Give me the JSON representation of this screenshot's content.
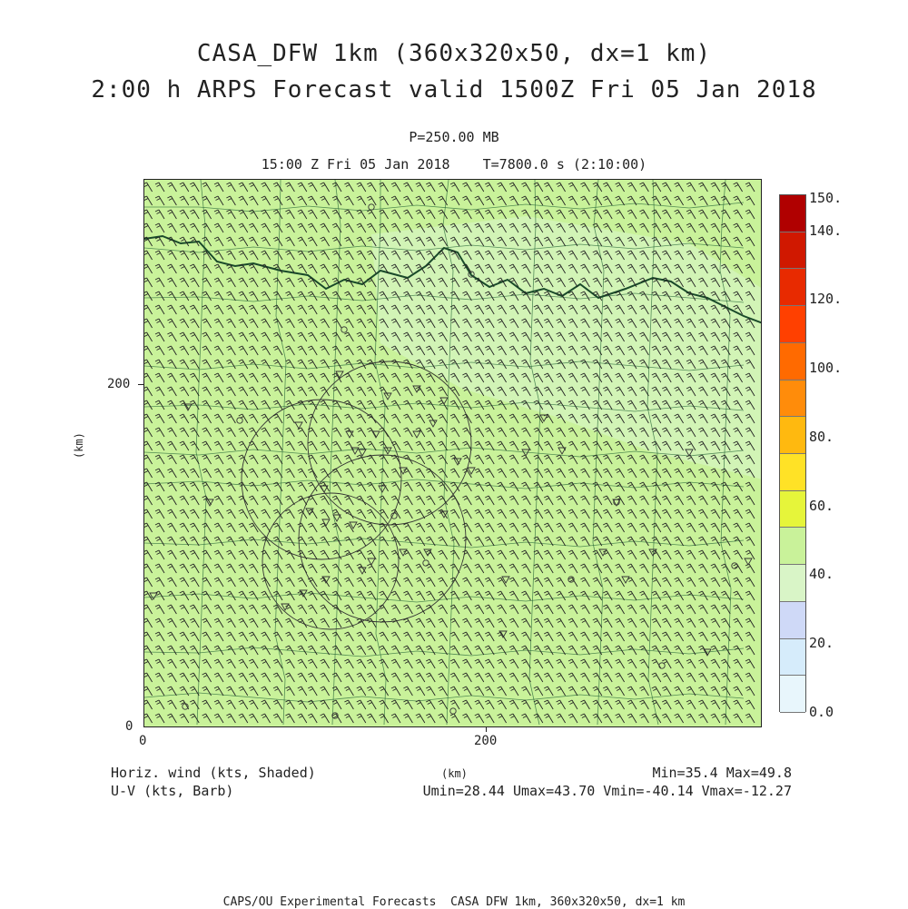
{
  "header": {
    "title_line1": "CASA_DFW 1km (360x320x50, dx=1 km)",
    "title_line2": "2:00 h ARPS Forecast valid 1500Z Fri 05 Jan 2018",
    "pressure_level": "P=250.00 MB",
    "time_info": "15:00 Z Fri 05 Jan 2018    T=7800.0 s (2:10:00)"
  },
  "axes": {
    "x_label": "(km)",
    "y_label": "(km)",
    "x_ticks": [
      "0",
      "200"
    ],
    "y_ticks": [
      "0",
      "200"
    ]
  },
  "colorbar": {
    "labels": [
      "0.0",
      "20.",
      "40.",
      "60.",
      "80.",
      "100.",
      "120.",
      "140.",
      "150."
    ],
    "colors": [
      "#e8f6fc",
      "#d6ecfb",
      "#cfd9f7",
      "#d9f5c7",
      "#c9f29a",
      "#e6f53a",
      "#ffe226",
      "#ffb90f",
      "#ff8c0a",
      "#ff6a00",
      "#ff4000",
      "#e82a00",
      "#d01800",
      "#b00000"
    ]
  },
  "footer": {
    "left_line1": "Horiz. wind (kts, Shaded)",
    "left_line2": "U-V (kts, Barb)",
    "stats_line1": "Min=35.4 Max=49.8",
    "stats_line2": "Umin=28.44 Umax=43.70 Vmin=-40.14 Vmax=-12.27",
    "credit": "CAPS/OU Experimental Forecasts  CASA DFW 1km, 360x320x50, dx=1 km"
  },
  "colors": {
    "field_fill": "#c9f29a",
    "field_light": "#d6f5c2",
    "county_lines": "#2a6a3a",
    "barbs": "#222222",
    "boundary": "#1a4a2a"
  }
}
